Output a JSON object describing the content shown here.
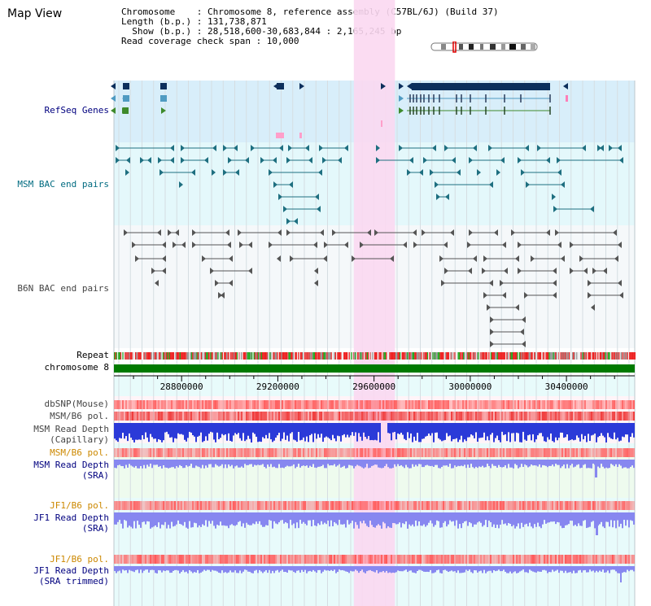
{
  "title": "Map View",
  "info": {
    "line1": "Chromosome    : Chromosome 8, reference assembly (C57BL/6J) (Build 37)",
    "line2": "Length (b.p.) : 131,738,871",
    "line3": "  Show (b.p.) : 28,518,600-30,683,844 : 2,165,245 bp",
    "line4": "Read coverage check span : 10,000"
  },
  "labels": {
    "refseq": "RefSeq Genes",
    "msm_bac": "MSM BAC end pairs",
    "b6n_bac": "B6N BAC end pairs",
    "repeat": "Repeat",
    "chromosome": "chromosome 8",
    "dbsnp": "dbSNP(Mouse)",
    "msm_b6_pol_1": "MSM/B6 pol.",
    "msm_depth_cap_1": "MSM Read Depth",
    "msm_depth_cap_2": "(Capillary)",
    "msm_b6_pol_2": "MSM/B6 pol.",
    "msm_depth_sra_1": "MSM Read Depth",
    "msm_depth_sra_2": "(SRA)",
    "jf1_b6_pol_1": "JF1/B6 pol.",
    "jf1_depth_sra_1": "JF1 Read Depth",
    "jf1_depth_sra_2": "(SRA)",
    "jf1_b6_pol_2": "JF1/B6 pol.",
    "jf1_depth_trim_1": "JF1 Read Depth",
    "jf1_depth_trim_2": "(SRA trimmed)"
  },
  "axis": {
    "ticks": [
      "28800000",
      "29200000",
      "29600000",
      "30000000",
      "30400000"
    ],
    "tick_values": [
      28800000,
      29200000,
      29600000,
      30000000,
      30400000
    ],
    "range": [
      28518600,
      30683844
    ]
  },
  "highlight_region": [
    29516000,
    29687000
  ],
  "colors": {
    "refseq_bg": "#d8eefa",
    "msm_bg": "#e4f8fb",
    "b6n_bg": "#f5f8fa",
    "lower_bg": "#e8fbfb",
    "highlight": "#fbd8f1",
    "gene_dark": "#0c2f5c",
    "gene_mid": "#4f9bc2",
    "gene_green": "#3e8a2c",
    "msm_bac": "#1e6f80",
    "b6n_bac": "#555555",
    "chromosome": "#007a00",
    "pol": "#f25a5a",
    "depth_cap": "#2b3ad8",
    "depth_sra": "#8787f0"
  }
}
